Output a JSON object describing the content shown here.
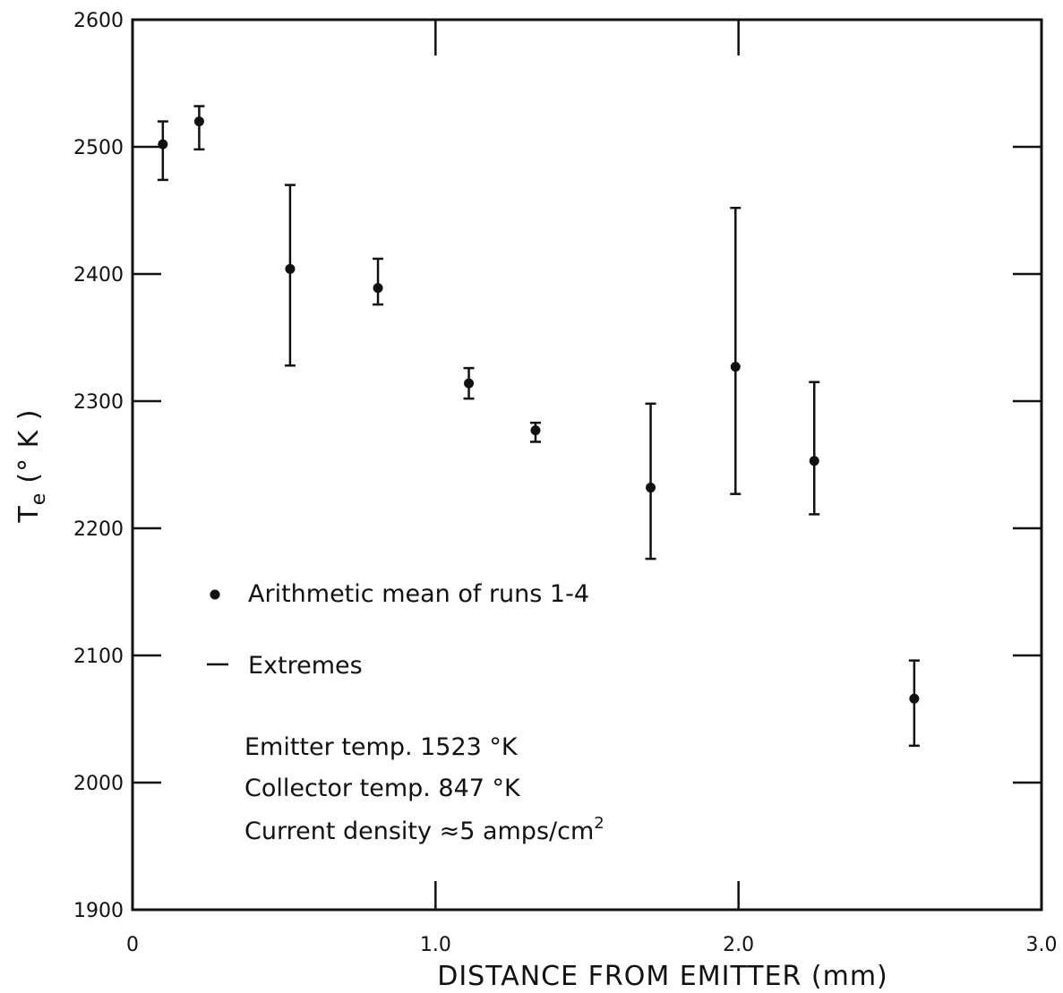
{
  "chart_data": {
    "type": "scatter",
    "title": "",
    "xlabel": "DISTANCE FROM EMITTER (mm)",
    "ylabel_main": "T",
    "ylabel_sub": "e",
    "ylabel_unit": "(° K )",
    "xlim": [
      0,
      3.0
    ],
    "ylim": [
      1900,
      2600
    ],
    "x_ticks": [
      0,
      1.0,
      2.0,
      3.0
    ],
    "x_tick_labels": [
      "0",
      "1.0",
      "2.0",
      "3.0"
    ],
    "y_ticks": [
      1900,
      2000,
      2100,
      2200,
      2300,
      2400,
      2500,
      2600
    ],
    "y_tick_labels": [
      "1900",
      "2000",
      "2100",
      "2200",
      "2300",
      "2400",
      "2500",
      "2600"
    ],
    "grid": false,
    "series": [
      {
        "name": "Arithmetic mean of runs 1-4",
        "points": [
          {
            "x": 0.1,
            "y": 2502,
            "ymin": 2474,
            "ymax": 2520
          },
          {
            "x": 0.22,
            "y": 2520,
            "ymin": 2498,
            "ymax": 2532
          },
          {
            "x": 0.52,
            "y": 2404,
            "ymin": 2328,
            "ymax": 2470
          },
          {
            "x": 0.81,
            "y": 2389,
            "ymin": 2376,
            "ymax": 2412
          },
          {
            "x": 1.11,
            "y": 2314,
            "ymin": 2302,
            "ymax": 2326
          },
          {
            "x": 1.33,
            "y": 2277,
            "ymin": 2268,
            "ymax": 2283
          },
          {
            "x": 1.71,
            "y": 2232,
            "ymin": 2176,
            "ymax": 2298
          },
          {
            "x": 1.99,
            "y": 2327,
            "ymin": 2227,
            "ymax": 2452
          },
          {
            "x": 2.25,
            "y": 2253,
            "ymin": 2211,
            "ymax": 2315
          },
          {
            "x": 2.58,
            "y": 2066,
            "ymin": 2029,
            "ymax": 2096
          }
        ]
      }
    ],
    "legend": {
      "mean_label": "Arithmetic mean of runs 1-4",
      "extremes_label": "Extremes"
    },
    "annotations": {
      "emitter": "Emitter temp. 1523 °K",
      "collector": "Collector temp. 847 °K",
      "current_prefix": "Current density ≈5 amps/cm",
      "current_sup": "2"
    }
  }
}
